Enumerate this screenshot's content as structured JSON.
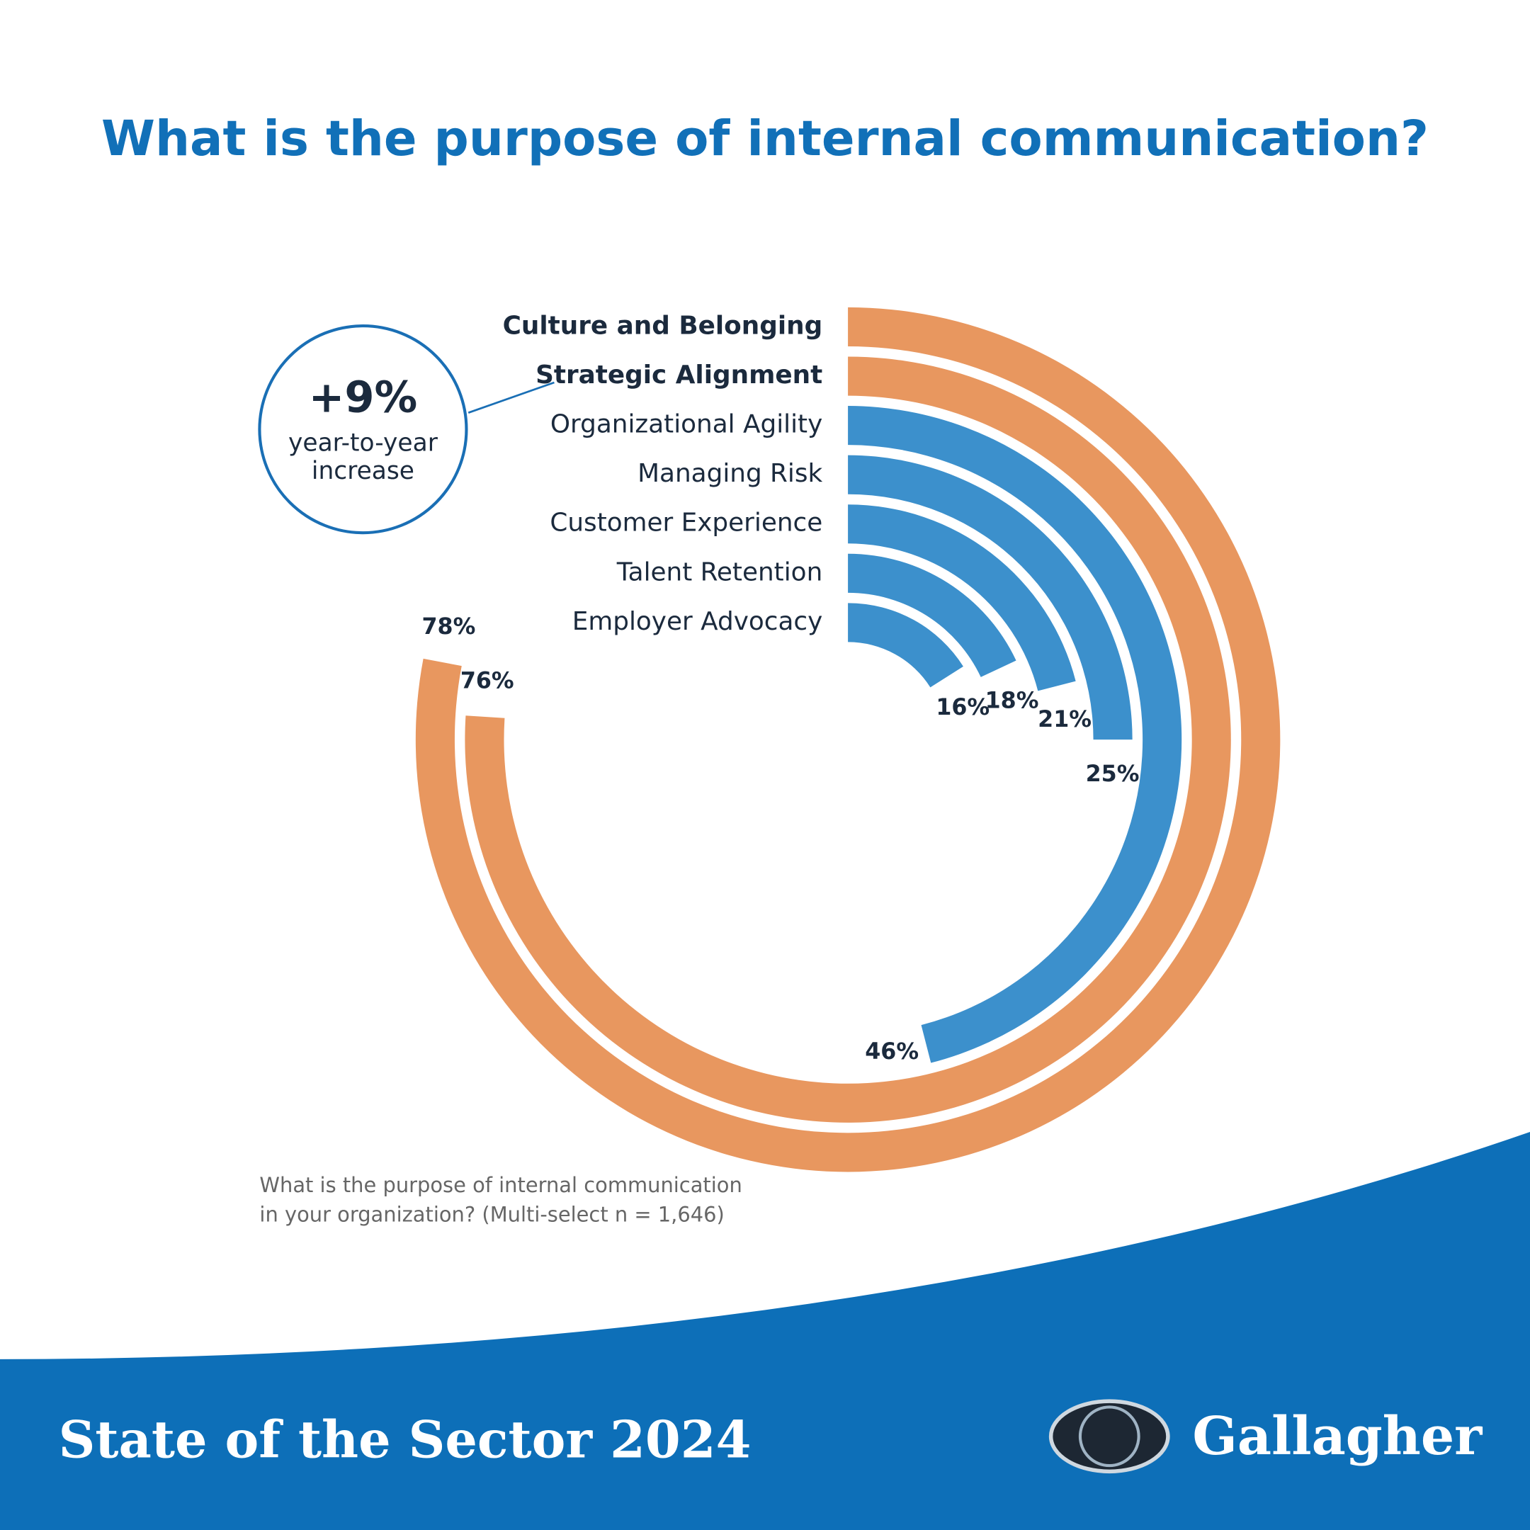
{
  "chart_data": {
    "type": "radial_bar",
    "title": "What is the purpose of internal communication?",
    "categories": [
      "Culture and Belonging",
      "Strategic Alignment",
      "Organizational Agility",
      "Managing Risk",
      "Customer Experience",
      "Talent Retention",
      "Employer Advocacy"
    ],
    "values": [
      78,
      76,
      46,
      25,
      21,
      18,
      16
    ],
    "value_labels": [
      "78%",
      "76%",
      "46%",
      "25%",
      "21%",
      "18%",
      "16%"
    ],
    "colors": [
      "#e8975f",
      "#e8975f",
      "#3c90cc",
      "#3c90cc",
      "#3c90cc",
      "#3c90cc",
      "#3c90cc"
    ],
    "ylim": [
      0,
      100
    ],
    "annotation": {
      "headline": "+9%",
      "text": [
        "year-to-year",
        "increase"
      ]
    },
    "note": [
      "What is the purpose of internal communication",
      "in your organization? (Multi-select n = 1,646)"
    ]
  },
  "footer": {
    "title": "State of the Sector 2024",
    "brand": "Gallagher"
  }
}
